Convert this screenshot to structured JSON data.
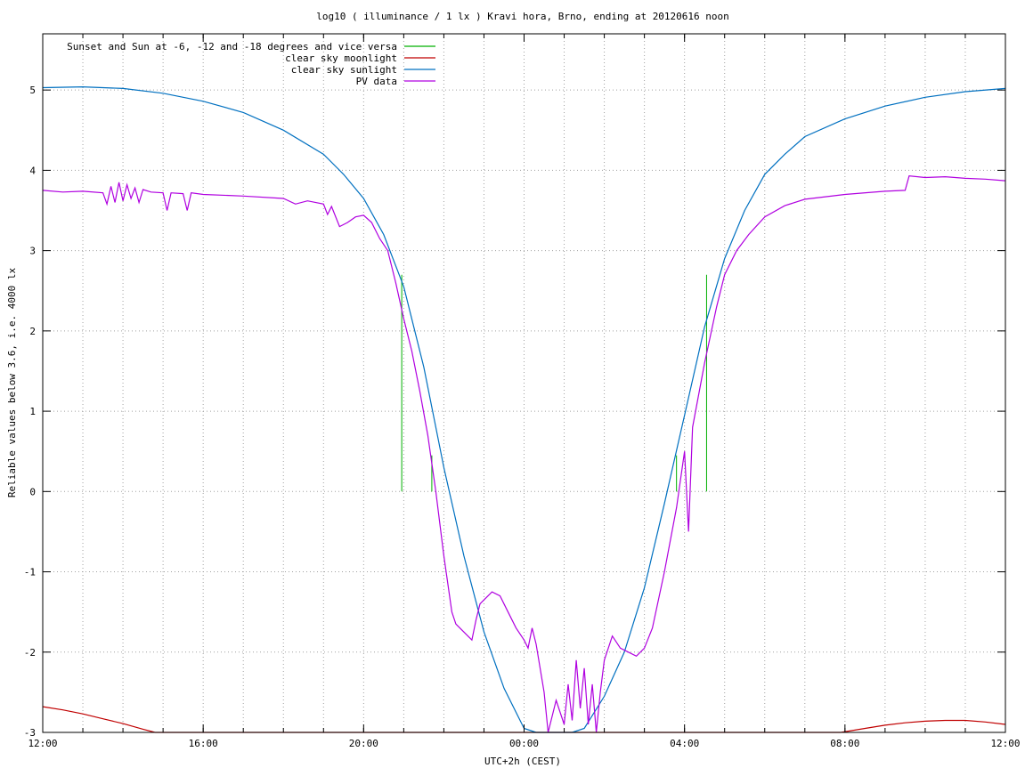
{
  "chart_data": {
    "type": "line",
    "title": "log10 ( illuminance / 1 lx ) Kravi hora, Brno, ending at 20120616 noon",
    "xlabel": "UTC+2h (CEST)",
    "ylabel": "Reliable values below 3.6, i.e. 4000 lx",
    "x_unit": "hours after 12:00 local time (CEST)",
    "xlim": [
      0,
      24
    ],
    "ylim": [
      -3,
      5.7
    ],
    "grid": true,
    "legend_position": "top-left",
    "x_ticks": [
      {
        "value": 0,
        "label": "12:00"
      },
      {
        "value": 4,
        "label": "16:00"
      },
      {
        "value": 8,
        "label": "20:00"
      },
      {
        "value": 12,
        "label": "00:00"
      },
      {
        "value": 16,
        "label": "04:00"
      },
      {
        "value": 20,
        "label": "08:00"
      },
      {
        "value": 24,
        "label": "12:00"
      }
    ],
    "y_ticks": [
      {
        "value": 5,
        "label": "5"
      },
      {
        "value": 4,
        "label": "4"
      },
      {
        "value": 3,
        "label": "3"
      },
      {
        "value": 2,
        "label": "2"
      },
      {
        "value": 1,
        "label": "1"
      },
      {
        "value": 0,
        "label": "0"
      },
      {
        "value": -1,
        "label": "-1"
      },
      {
        "value": -2,
        "label": "-2"
      },
      {
        "value": -3,
        "label": "-3"
      }
    ],
    "series": [
      {
        "name": "Sunset and Sun at -6, -12 and -18 degrees and vice versa",
        "color": "#00b000",
        "style": "impulses",
        "points": [
          [
            8.95,
            2.7
          ],
          [
            9.7,
            0.45
          ],
          [
            10.6,
            0.0
          ],
          [
            14.9,
            0.0
          ],
          [
            15.8,
            0.45
          ],
          [
            16.55,
            2.7
          ]
        ]
      },
      {
        "name": "clear sky moonlight",
        "color": "#c00000",
        "style": "line",
        "points": [
          [
            0,
            -2.68
          ],
          [
            0.5,
            -2.72
          ],
          [
            1.0,
            -2.77
          ],
          [
            1.5,
            -2.83
          ],
          [
            2.0,
            -2.89
          ],
          [
            2.5,
            -2.96
          ],
          [
            2.8,
            -3.0
          ],
          [
            19.9,
            -3.0
          ],
          [
            20.5,
            -2.95
          ],
          [
            21.0,
            -2.91
          ],
          [
            21.5,
            -2.88
          ],
          [
            22.0,
            -2.86
          ],
          [
            22.5,
            -2.85
          ],
          [
            23.0,
            -2.85
          ],
          [
            23.5,
            -2.87
          ],
          [
            24.0,
            -2.9
          ]
        ]
      },
      {
        "name": "clear sky sunlight",
        "color": "#0070c0",
        "style": "line",
        "points": [
          [
            0,
            5.03
          ],
          [
            1,
            5.04
          ],
          [
            2,
            5.02
          ],
          [
            3,
            4.96
          ],
          [
            4,
            4.86
          ],
          [
            5,
            4.72
          ],
          [
            6,
            4.5
          ],
          [
            7,
            4.2
          ],
          [
            7.5,
            3.95
          ],
          [
            8.0,
            3.65
          ],
          [
            8.5,
            3.2
          ],
          [
            9.0,
            2.55
          ],
          [
            9.5,
            1.55
          ],
          [
            10.0,
            0.3
          ],
          [
            10.5,
            -0.8
          ],
          [
            11.0,
            -1.75
          ],
          [
            11.5,
            -2.45
          ],
          [
            12.0,
            -2.95
          ],
          [
            12.3,
            -3.0
          ],
          [
            13.2,
            -3.0
          ],
          [
            13.5,
            -2.95
          ],
          [
            14.0,
            -2.55
          ],
          [
            14.5,
            -2.0
          ],
          [
            15.0,
            -1.2
          ],
          [
            15.5,
            -0.15
          ],
          [
            16.0,
            0.95
          ],
          [
            16.5,
            2.05
          ],
          [
            17.0,
            2.9
          ],
          [
            17.5,
            3.5
          ],
          [
            18.0,
            3.95
          ],
          [
            18.5,
            4.2
          ],
          [
            19.0,
            4.42
          ],
          [
            20.0,
            4.64
          ],
          [
            21.0,
            4.8
          ],
          [
            22.0,
            4.91
          ],
          [
            23.0,
            4.98
          ],
          [
            24.0,
            5.02
          ]
        ]
      },
      {
        "name": "PV data",
        "color": "#b000e0",
        "style": "line",
        "points": [
          [
            0,
            3.75
          ],
          [
            0.5,
            3.73
          ],
          [
            1.0,
            3.74
          ],
          [
            1.5,
            3.72
          ],
          [
            1.6,
            3.58
          ],
          [
            1.7,
            3.8
          ],
          [
            1.8,
            3.6
          ],
          [
            1.9,
            3.85
          ],
          [
            2.0,
            3.62
          ],
          [
            2.1,
            3.82
          ],
          [
            2.2,
            3.65
          ],
          [
            2.3,
            3.78
          ],
          [
            2.4,
            3.6
          ],
          [
            2.5,
            3.76
          ],
          [
            2.7,
            3.73
          ],
          [
            3.0,
            3.72
          ],
          [
            3.1,
            3.5
          ],
          [
            3.2,
            3.72
          ],
          [
            3.5,
            3.71
          ],
          [
            3.6,
            3.5
          ],
          [
            3.7,
            3.72
          ],
          [
            4.0,
            3.7
          ],
          [
            5.0,
            3.68
          ],
          [
            6.0,
            3.65
          ],
          [
            6.3,
            3.58
          ],
          [
            6.6,
            3.62
          ],
          [
            7.0,
            3.58
          ],
          [
            7.1,
            3.45
          ],
          [
            7.2,
            3.55
          ],
          [
            7.4,
            3.3
          ],
          [
            7.6,
            3.35
          ],
          [
            7.8,
            3.42
          ],
          [
            8.0,
            3.44
          ],
          [
            8.2,
            3.35
          ],
          [
            8.4,
            3.15
          ],
          [
            8.6,
            3.0
          ],
          [
            8.8,
            2.6
          ],
          [
            9.0,
            2.15
          ],
          [
            9.2,
            1.75
          ],
          [
            9.4,
            1.25
          ],
          [
            9.6,
            0.7
          ],
          [
            9.8,
            0.0
          ],
          [
            10.0,
            -0.8
          ],
          [
            10.2,
            -1.5
          ],
          [
            10.3,
            -1.65
          ],
          [
            10.5,
            -1.75
          ],
          [
            10.7,
            -1.85
          ],
          [
            10.8,
            -1.6
          ],
          [
            10.9,
            -1.4
          ],
          [
            11.0,
            -1.35
          ],
          [
            11.2,
            -1.25
          ],
          [
            11.4,
            -1.3
          ],
          [
            11.6,
            -1.5
          ],
          [
            11.8,
            -1.7
          ],
          [
            12.0,
            -1.85
          ],
          [
            12.1,
            -1.95
          ],
          [
            12.2,
            -1.7
          ],
          [
            12.3,
            -1.9
          ],
          [
            12.4,
            -2.2
          ],
          [
            12.5,
            -2.5
          ],
          [
            12.6,
            -3.0
          ],
          [
            12.8,
            -2.6
          ],
          [
            13.0,
            -2.9
          ],
          [
            13.1,
            -2.4
          ],
          [
            13.2,
            -2.85
          ],
          [
            13.3,
            -2.1
          ],
          [
            13.4,
            -2.7
          ],
          [
            13.5,
            -2.2
          ],
          [
            13.6,
            -2.9
          ],
          [
            13.7,
            -2.4
          ],
          [
            13.8,
            -3.0
          ],
          [
            13.9,
            -2.5
          ],
          [
            14.0,
            -2.1
          ],
          [
            14.2,
            -1.8
          ],
          [
            14.4,
            -1.95
          ],
          [
            14.6,
            -2.0
          ],
          [
            14.8,
            -2.05
          ],
          [
            15.0,
            -1.95
          ],
          [
            15.2,
            -1.7
          ],
          [
            15.5,
            -1.0
          ],
          [
            15.8,
            -0.2
          ],
          [
            16.0,
            0.5
          ],
          [
            16.1,
            -0.5
          ],
          [
            16.2,
            0.8
          ],
          [
            16.5,
            1.6
          ],
          [
            16.8,
            2.3
          ],
          [
            17.0,
            2.7
          ],
          [
            17.3,
            3.0
          ],
          [
            17.6,
            3.2
          ],
          [
            18.0,
            3.42
          ],
          [
            18.5,
            3.56
          ],
          [
            19.0,
            3.64
          ],
          [
            20.0,
            3.7
          ],
          [
            21.0,
            3.74
          ],
          [
            21.5,
            3.75
          ],
          [
            21.6,
            3.93
          ],
          [
            22.0,
            3.91
          ],
          [
            22.5,
            3.92
          ],
          [
            23.0,
            3.9
          ],
          [
            23.5,
            3.89
          ],
          [
            24.0,
            3.87
          ]
        ]
      }
    ]
  }
}
